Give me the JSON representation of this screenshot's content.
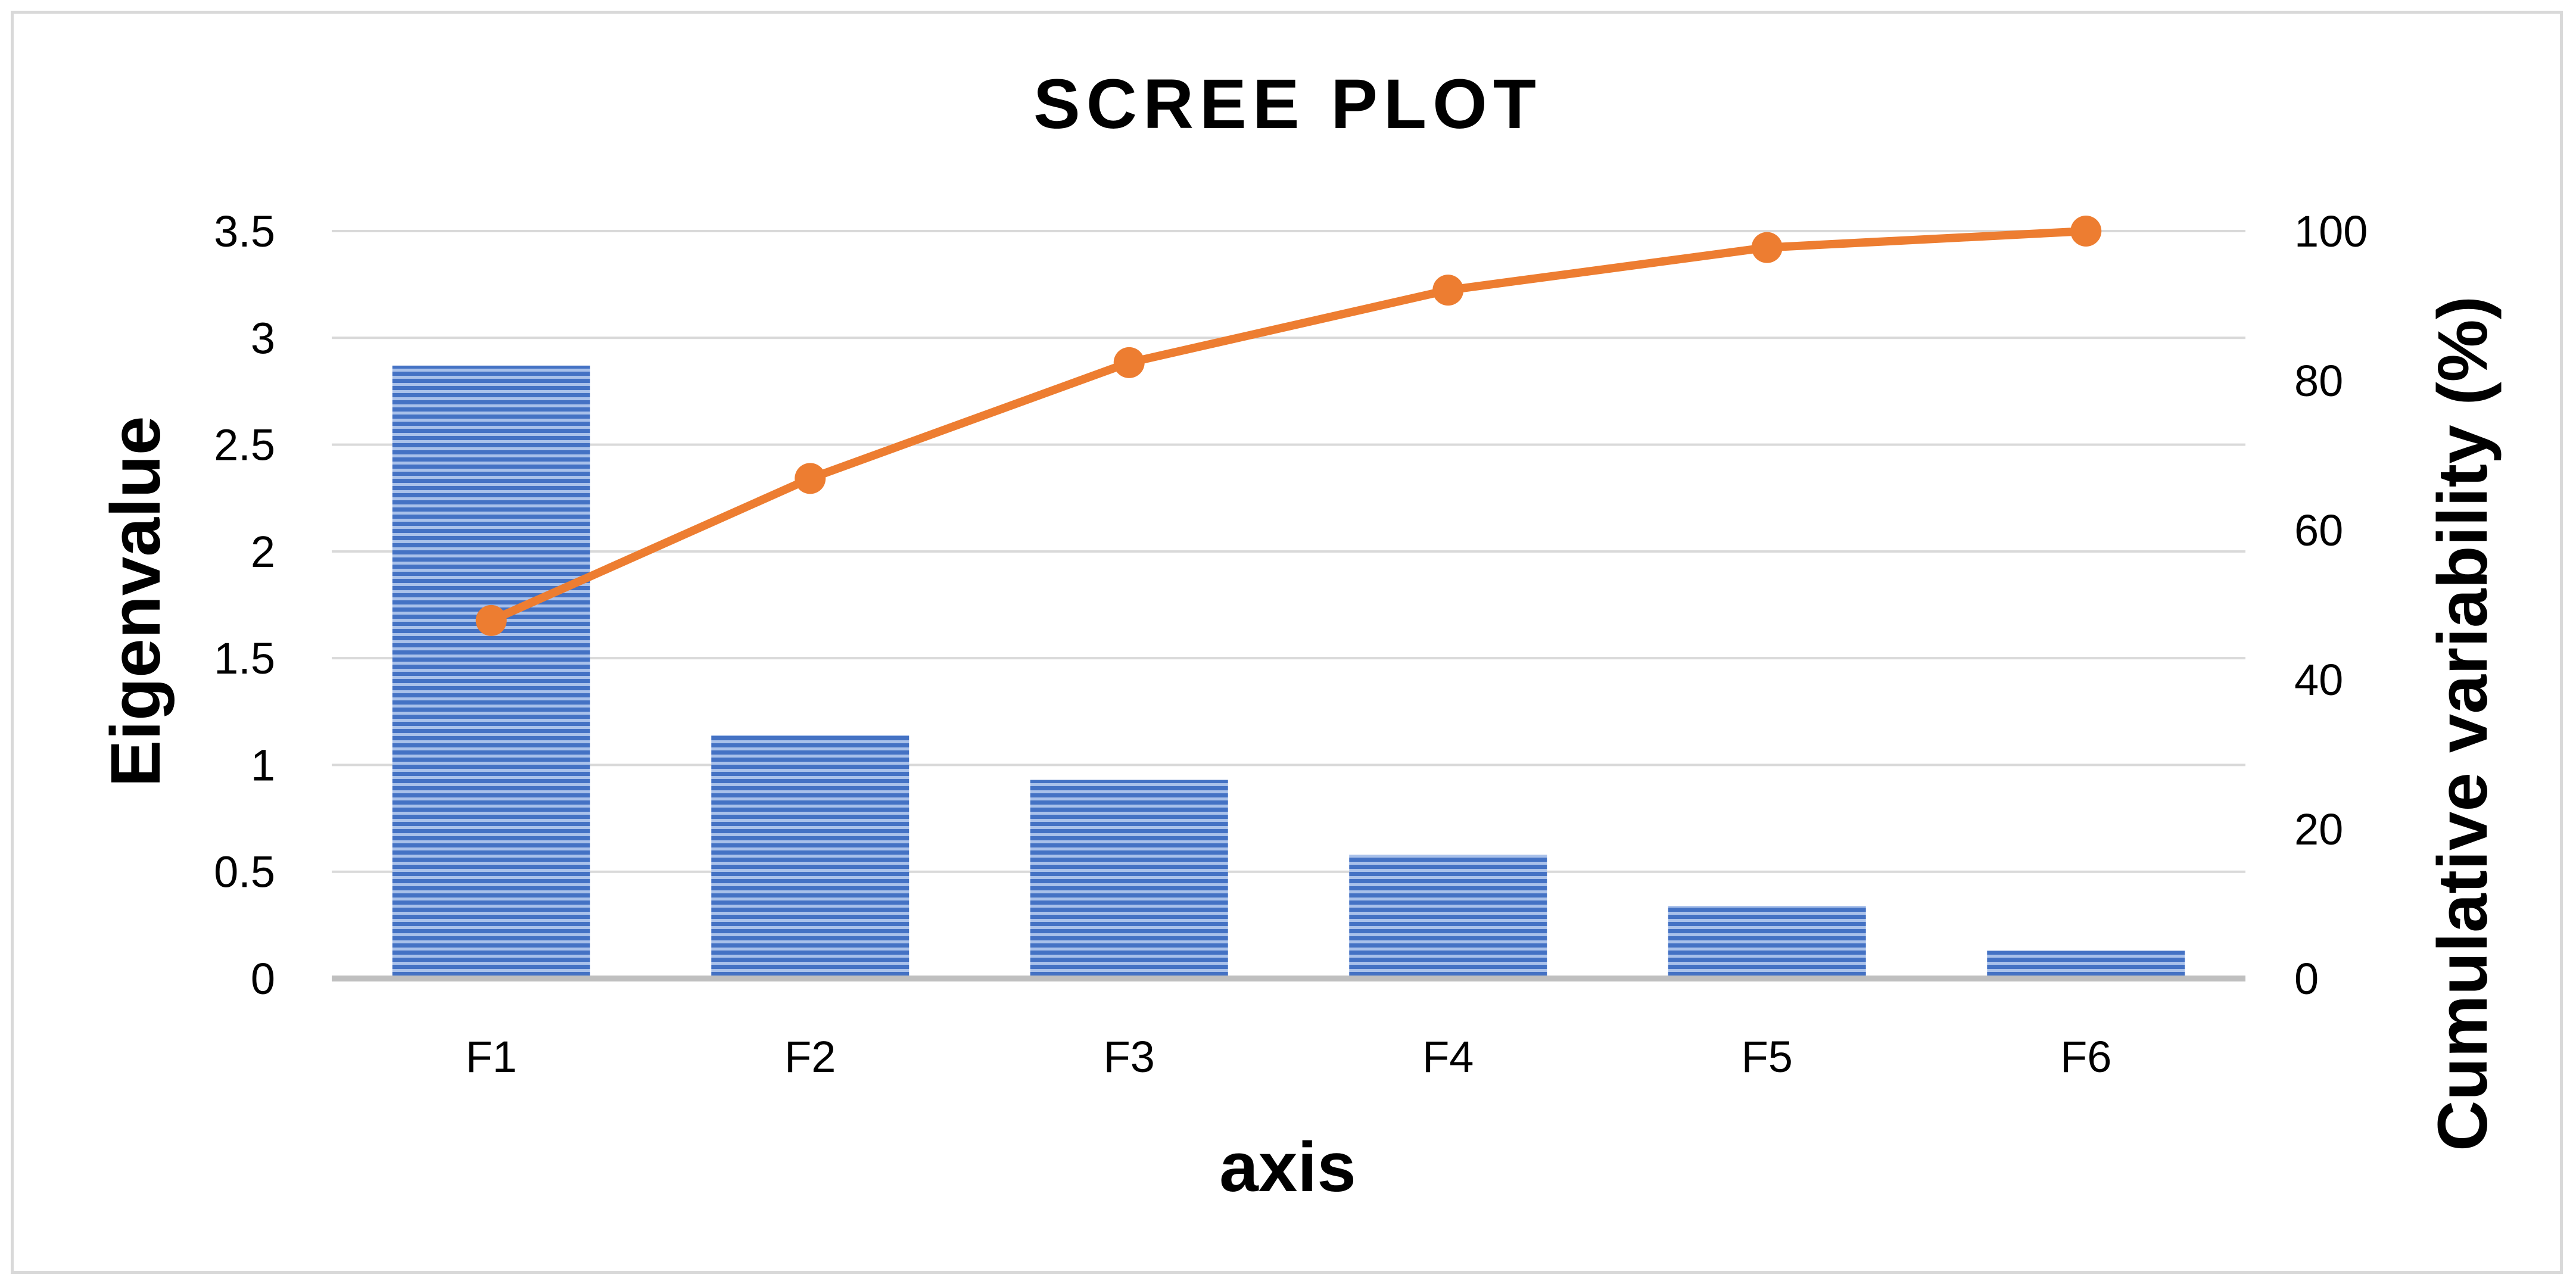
{
  "chart_data": {
    "type": "bar",
    "title": "SCREE PLOT",
    "xlabel": "axis",
    "ylabel": "Eigenvalue",
    "y2label": "Cumulative variability (%)",
    "categories": [
      "F1",
      "F2",
      "F3",
      "F4",
      "F5",
      "F6"
    ],
    "series": [
      {
        "type": "bar",
        "axis": "left",
        "values": [
          2.87,
          1.14,
          0.93,
          0.58,
          0.34,
          0.13
        ],
        "color": "#4472c4"
      },
      {
        "type": "line",
        "axis": "right",
        "values": [
          47.9,
          66.9,
          82.4,
          92.1,
          97.8,
          100
        ],
        "color": "#ed7d31"
      }
    ],
    "ylim": [
      0,
      3.5
    ],
    "y_ticks": [
      "0",
      "0.5",
      "1",
      "1.5",
      "2",
      "2.5",
      "3",
      "3.5"
    ],
    "y2lim": [
      0,
      100
    ],
    "y2_ticks": [
      "0",
      "20",
      "40",
      "60",
      "80",
      "100"
    ],
    "grid": true,
    "legend": "none"
  }
}
